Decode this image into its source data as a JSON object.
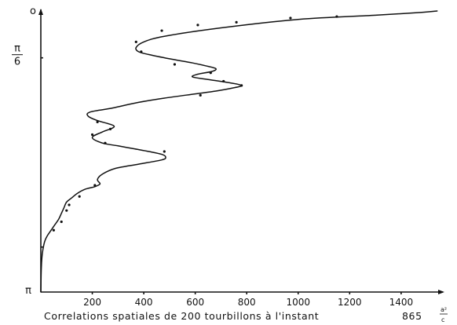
{
  "chart_data": {
    "type": "line",
    "title": "",
    "caption": "Correlations spatiales de 200 tourbillons à l'instant",
    "caption_value": "865",
    "caption_frac_num": "a²",
    "caption_frac_den": "c",
    "xlabel": "",
    "ylabel": "",
    "xlim": [
      0,
      1550
    ],
    "ylim_top": "0",
    "ylim_bottom": "π",
    "x_ticks": [
      200,
      400,
      600,
      800,
      1000,
      1200,
      1400
    ],
    "y_ticks": [
      {
        "value": 0.5236,
        "num": "π",
        "den": "6"
      }
    ],
    "y_top_label": "o",
    "y_bottom_label": "π",
    "grid": false,
    "series": [
      {
        "angle_fraction_of_pi": [
          0,
          0.005,
          0.015,
          0.03,
          0.06,
          0.09,
          0.11,
          0.13,
          0.145,
          0.155,
          0.17,
          0.185,
          0.195,
          0.205,
          0.215,
          0.225,
          0.235,
          0.245,
          0.255,
          0.265,
          0.275,
          0.285,
          0.295,
          0.31,
          0.325,
          0.345,
          0.36,
          0.375,
          0.39,
          0.41,
          0.43,
          0.45,
          0.47,
          0.48,
          0.49,
          0.5,
          0.51,
          0.52,
          0.53,
          0.545,
          0.56,
          0.58,
          0.6,
          0.615,
          0.625,
          0.635,
          0.65,
          0.665,
          0.68,
          0.7,
          0.72,
          0.74,
          0.76,
          0.78,
          0.8,
          0.82,
          0.85,
          0.88,
          0.91,
          0.95,
          1.0
        ],
        "value": [
          1540,
          1480,
          1300,
          1000,
          700,
          480,
          400,
          370,
          380,
          420,
          500,
          590,
          640,
          680,
          665,
          610,
          590,
          660,
          730,
          780,
          740,
          680,
          600,
          480,
          380,
          280,
          190,
          185,
          220,
          285,
          240,
          200,
          240,
          300,
          360,
          420,
          470,
          485,
          470,
          380,
          290,
          240,
          220,
          230,
          210,
          170,
          140,
          120,
          100,
          90,
          80,
          70,
          55,
          40,
          25,
          15,
          8,
          4,
          2,
          1,
          0
        ]
      }
    ],
    "markers": {
      "angle_fraction_of_pi": [
        0.02,
        0.025,
        0.04,
        0.05,
        0.07,
        0.11,
        0.145,
        0.19,
        0.22,
        0.25,
        0.265,
        0.3,
        0.395,
        0.42,
        0.44,
        0.47,
        0.5,
        0.62,
        0.66,
        0.69,
        0.71,
        0.75,
        0.78
      ],
      "value": [
        1150,
        970,
        760,
        610,
        470,
        370,
        390,
        520,
        660,
        710,
        780,
        620,
        220,
        270,
        200,
        250,
        480,
        210,
        150,
        110,
        100,
        80,
        50
      ]
    }
  }
}
